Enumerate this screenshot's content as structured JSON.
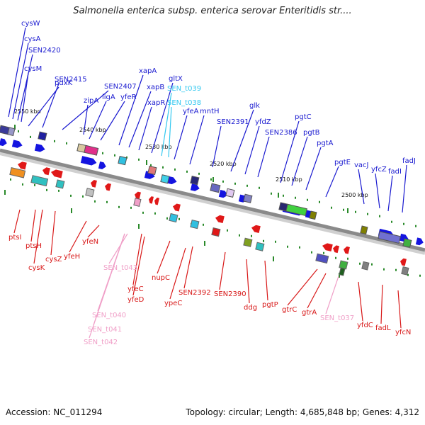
{
  "title": "Salmonella enterica subsp. enterica serovar Enteritidis str....",
  "footer": {
    "accession": "Accession: NC_011294",
    "topology": "Topology: circular; Length: 4,685,848 bp; Genes: 4,312"
  },
  "colors": {
    "forward_label": "#1a1ad0",
    "reverse_label": "#d81818",
    "trna_forward": "#33c8f0",
    "trna_reverse": "#f0a0c8",
    "backbone": "#8a8a8a",
    "tick": "#2a8a2a"
  },
  "scale_labels": [
    "2550 kbp",
    "2540 kbp",
    "2530 kbp",
    "2520 kbp",
    "2510 kbp",
    "2500 kbp"
  ],
  "forward_labels": [
    "cysW",
    "cysA",
    "SEN2420",
    "cysM",
    "pdxK",
    "SEN2415",
    "SEN2407",
    "zipA",
    "ligA",
    "yfeR",
    "xapA",
    "xapB",
    "xapR",
    "gltX",
    "SEN_t039",
    "SEN_t038",
    "yfeA",
    "mntH",
    "SEN2391",
    "glk",
    "yfdZ",
    "SEN2386",
    "pgtC",
    "pgtB",
    "pgtA",
    "pgtE",
    "vacJ",
    "yfcZ",
    "fadI",
    "fadJ"
  ],
  "reverse_labels": [
    "ptsI",
    "ptsH",
    "cysK",
    "cysZ",
    "yfeH",
    "yfeN",
    "SEN_t043",
    "yfeC",
    "yfeD",
    "SEN_t040",
    "SEN_t041",
    "SEN_t042",
    "nupC",
    "ypeC",
    "SEN2392",
    "SEN2390",
    "ddg",
    "pgtP",
    "gtrC",
    "gtrA",
    "SEN_t037",
    "yfdC",
    "fadL",
    "yfcN"
  ]
}
